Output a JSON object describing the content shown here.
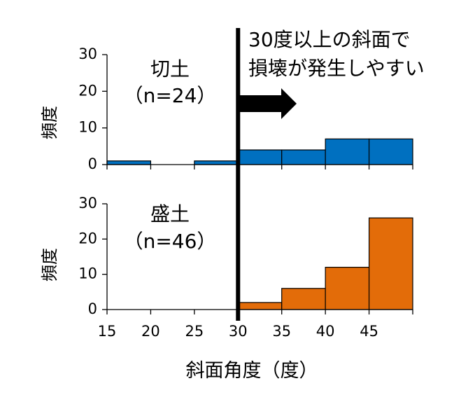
{
  "chart_data": {
    "type": "bar",
    "xlabel": "斜面角度（度）",
    "x_ticks": [
      15,
      20,
      25,
      30,
      35,
      40,
      45
    ],
    "xlim": [
      15,
      50
    ],
    "bin_width": 5,
    "bins": [
      15,
      20,
      25,
      30,
      35,
      40,
      45
    ],
    "threshold": 30,
    "annotation": [
      "30度以上の斜面で",
      "損壊が発生しやすい"
    ],
    "panels": [
      {
        "title": "切土",
        "count_label": "（n=24）",
        "ylabel": "頻度",
        "ylim": [
          0,
          30
        ],
        "y_ticks": [
          0,
          10,
          20,
          30
        ],
        "values": [
          1,
          0,
          1,
          4,
          4,
          7,
          7
        ],
        "color": "#0070C0"
      },
      {
        "title": "盛土",
        "count_label": "（n=46）",
        "ylabel": "頻度",
        "ylim": [
          0,
          30
        ],
        "y_ticks": [
          0,
          10,
          20,
          30
        ],
        "values": [
          0,
          0,
          0,
          2,
          6,
          12,
          26
        ],
        "color": "#E36C09"
      }
    ]
  }
}
